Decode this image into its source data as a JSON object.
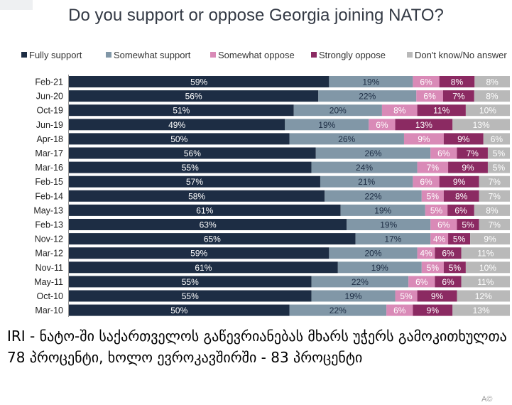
{
  "chart_data": {
    "type": "bar",
    "orientation": "horizontal",
    "stacked": true,
    "percent": true,
    "title": "Do you support or oppose Georgia joining NATO?",
    "legend_position": "top",
    "grid": false,
    "categories": [
      "Feb-21",
      "Jun-20",
      "Oct-19",
      "Jun-19",
      "Apr-18",
      "Mar-17",
      "Mar-16",
      "Feb-15",
      "Feb-14",
      "May-13",
      "Feb-13",
      "Nov-12",
      "Mar-12",
      "Nov-11",
      "May-11",
      "Oct-10",
      "Mar-10"
    ],
    "series": [
      {
        "name": "Fully support",
        "color": "#1d2d44",
        "label_color": "#ffffff",
        "values": [
          59,
          56,
          51,
          49,
          50,
          56,
          55,
          57,
          58,
          61,
          63,
          65,
          59,
          61,
          55,
          55,
          50
        ]
      },
      {
        "name": "Somewhat support",
        "color": "#8197a7",
        "label_color": "#1d2d44",
        "values": [
          19,
          22,
          20,
          19,
          26,
          26,
          24,
          21,
          22,
          19,
          19,
          17,
          20,
          19,
          22,
          19,
          22
        ]
      },
      {
        "name": "Somewhat oppose",
        "color": "#d98ab7",
        "label_color": "#ffffff",
        "values": [
          6,
          6,
          8,
          6,
          9,
          6,
          7,
          6,
          5,
          5,
          6,
          4,
          4,
          5,
          6,
          5,
          6
        ]
      },
      {
        "name": "Strongly oppose",
        "color": "#8b2a62",
        "label_color": "#ffffff",
        "values": [
          8,
          7,
          11,
          13,
          9,
          7,
          9,
          9,
          8,
          6,
          5,
          5,
          6,
          5,
          6,
          9,
          9
        ]
      },
      {
        "name": "Don't know/No answer",
        "color": "#b9b9b9",
        "label_color": "#ffffff",
        "values": [
          8,
          8,
          10,
          13,
          6,
          5,
          5,
          7,
          7,
          8,
          7,
          9,
          11,
          10,
          11,
          12,
          13
        ]
      }
    ]
  },
  "caption": {
    "text": "IRI - ნატო-ში საქართველოს გაწევრიანებას მხარს უჭერს გამოკითხულთა 78 პროცენტი, ხოლო ევროკავშირში - 83 პროცენტი"
  }
}
